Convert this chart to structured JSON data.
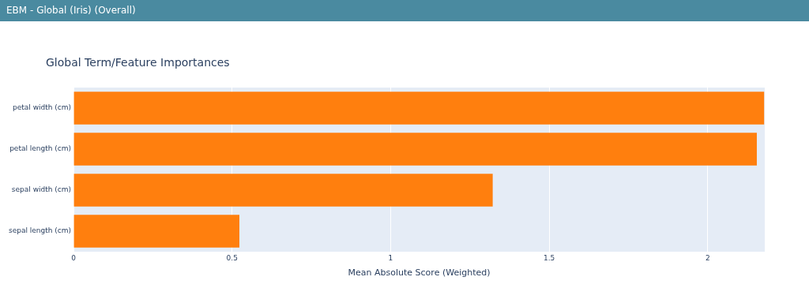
{
  "chart_data": {
    "type": "bar",
    "orientation": "horizontal",
    "title": "Global Term/Feature Importances",
    "xlabel": "Mean Absolute Score (Weighted)",
    "annotations": [
      "EBM - Global (Iris) (Overall)"
    ],
    "categories": [
      "petal width (cm)",
      "petal length (cm)",
      "sepal width (cm)",
      "sepal length (cm)"
    ],
    "values": [
      2.178,
      2.155,
      1.322,
      0.523
    ],
    "color": "#ff7f0e",
    "xlim": [
      0,
      2.18
    ],
    "xticks": [
      0,
      0.5,
      1,
      1.5,
      2
    ],
    "grid": "x"
  }
}
